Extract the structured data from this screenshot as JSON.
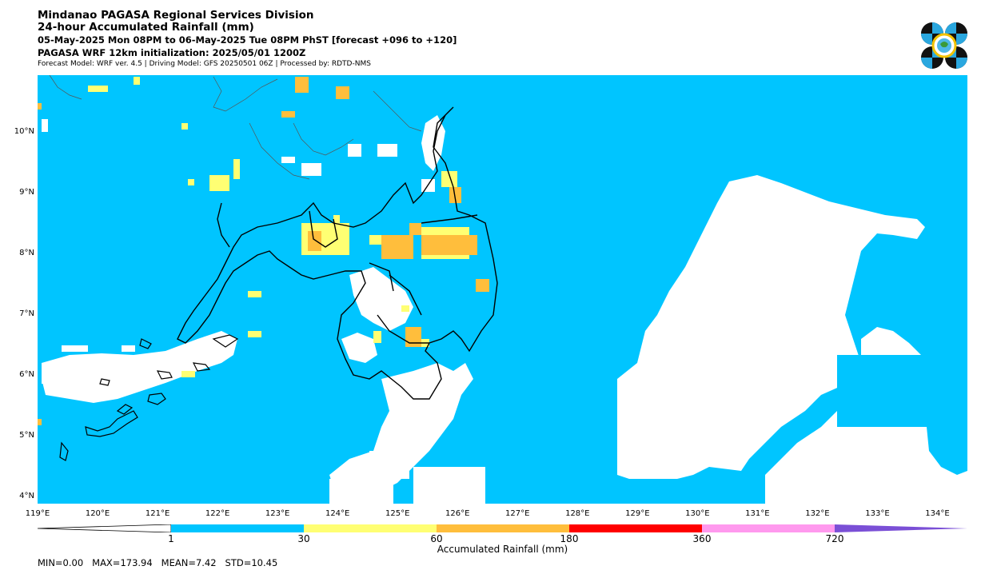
{
  "header": {
    "title": "Mindanao PAGASA Regional Services Division",
    "subtitle": "24-hour Accumulated Rainfall (mm)",
    "period": "05-May-2025 Mon 08PM to 06-May-2025 Tue 08PM PhST [forecast +096 to +120]",
    "model_init": "PAGASA WRF 12km initialization: 2025/05/01 1200Z",
    "model_info": "Forecast Model: WRF ver. 4.5 | Driving Model: GFS 20250501 06Z | Processed by: RDTD-NMS"
  },
  "map": {
    "lon_range": [
      119,
      134.5
    ],
    "lat_range": [
      3.9,
      10.95
    ],
    "lat_ticks": [
      "4°N",
      "5°N",
      "6°N",
      "7°N",
      "8°N",
      "9°N",
      "10°N"
    ],
    "lon_ticks": [
      "119°E",
      "120°E",
      "121°E",
      "122°E",
      "123°E",
      "124°E",
      "125°E",
      "126°E",
      "127°E",
      "128°E",
      "129°E",
      "130°E",
      "131°E",
      "132°E",
      "133°E",
      "134°E"
    ]
  },
  "colorbar": {
    "title": "Accumulated Rainfall (mm)",
    "tick_labels": [
      "1",
      "30",
      "60",
      "180",
      "360",
      "720"
    ],
    "colors": {
      "below_1": "#ffffff",
      "1_30": "#00c5ff",
      "30_60": "#ffff73",
      "60_180": "#ffbe3c",
      "180_360": "#ff0000",
      "360_720": "#ff99ee",
      "above_720": "#7a4fd6"
    }
  },
  "stats": {
    "min": "MIN=0.00",
    "max": "MAX=173.94",
    "mean": "MEAN=7.42",
    "std": "STD=10.45"
  },
  "logo": {
    "icon": "pagasa-logo-icon"
  }
}
